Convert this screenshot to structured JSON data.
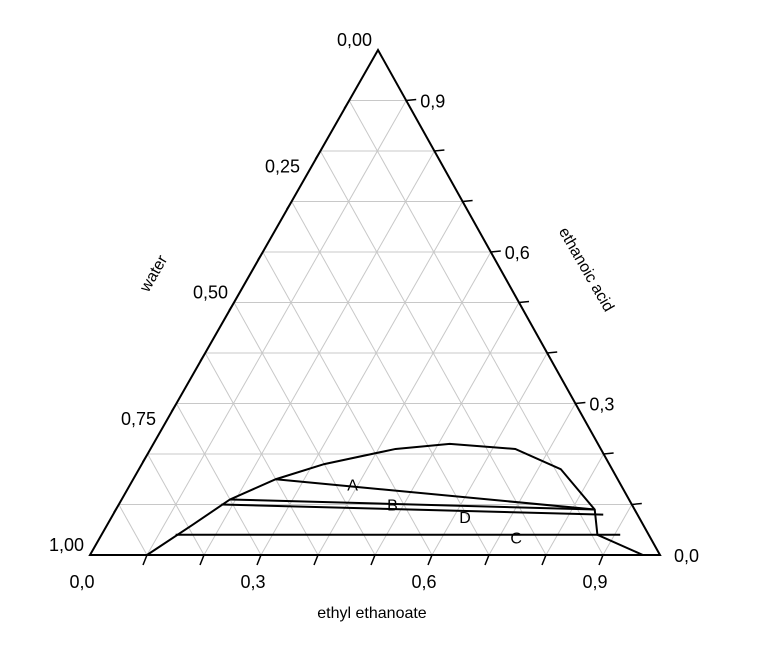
{
  "chart_data": {
    "type": "ternary",
    "axes": {
      "bottom": {
        "title": "ethyl ethanoate",
        "tick_labels": [
          "0,0",
          "0,3",
          "0,6",
          "0,9"
        ],
        "tick_values": [
          0,
          0.3,
          0.6,
          0.9
        ]
      },
      "right": {
        "title": "ethanoic acid",
        "tick_labels": [
          "0,0",
          "0,3",
          "0,6",
          "0,9"
        ],
        "tick_values": [
          0,
          0.3,
          0.6,
          0.9
        ]
      },
      "left": {
        "title": "water",
        "tick_labels": [
          "0,00",
          "0,25",
          "0,50",
          "0,75",
          "1,00"
        ],
        "tick_values": [
          0,
          0.25,
          0.5,
          0.75,
          1.0
        ]
      }
    },
    "grid": true,
    "grid_step": 0.1,
    "binodal_curve": [
      {
        "ester": 0.1,
        "acid": 0.0
      },
      {
        "ester": 0.15,
        "acid": 0.06
      },
      {
        "ester": 0.19,
        "acid": 0.11
      },
      {
        "ester": 0.25,
        "acid": 0.15
      },
      {
        "ester": 0.32,
        "acid": 0.18
      },
      {
        "ester": 0.43,
        "acid": 0.21
      },
      {
        "ester": 0.52,
        "acid": 0.22
      },
      {
        "ester": 0.64,
        "acid": 0.21
      },
      {
        "ester": 0.74,
        "acid": 0.17
      },
      {
        "ester": 0.84,
        "acid": 0.09
      },
      {
        "ester": 0.87,
        "acid": 0.04
      },
      {
        "ester": 0.97,
        "acid": 0.0
      }
    ],
    "tie_lines": [
      {
        "name": "A",
        "start": {
          "ester": 0.25,
          "acid": 0.15
        },
        "end": {
          "ester": 0.84,
          "acid": 0.09
        },
        "label_at": {
          "ester": 0.39,
          "acid": 0.14
        }
      },
      {
        "name": "B",
        "start": {
          "ester": 0.19,
          "acid": 0.11
        },
        "end": {
          "ester": 0.84,
          "acid": 0.09
        },
        "label_at": {
          "ester": 0.48,
          "acid": 0.1
        }
      },
      {
        "name": "D",
        "start": {
          "ester": 0.18,
          "acid": 0.1
        },
        "end": {
          "ester": 0.86,
          "acid": 0.08
        },
        "label_at": {
          "ester": 0.62,
          "acid": 0.075
        }
      },
      {
        "name": "C",
        "start": {
          "ester": 0.13,
          "acid": 0.04
        },
        "end": {
          "ester": 0.91,
          "acid": 0.04
        },
        "label_at": {
          "ester": 0.73,
          "acid": 0.035
        }
      }
    ]
  }
}
